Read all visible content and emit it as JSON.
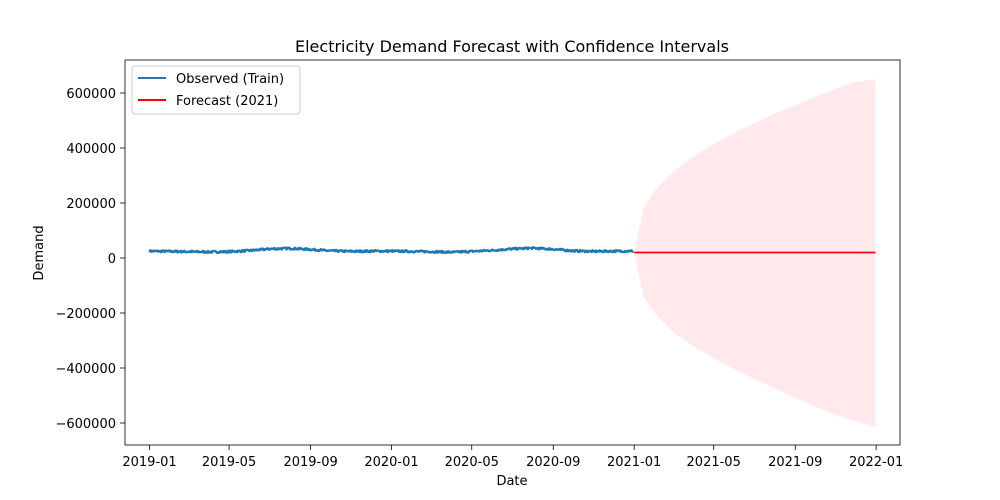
{
  "chart_data": {
    "type": "line",
    "title": "Electricity Demand Forecast with Confidence Intervals",
    "xlabel": "Date",
    "ylabel": "Demand",
    "x_axis": {
      "type": "date",
      "range": [
        "2018-11-25",
        "2022-02-06"
      ],
      "ticks": [
        "2019-01",
        "2019-05",
        "2019-09",
        "2020-01",
        "2020-05",
        "2020-09",
        "2021-01",
        "2021-05",
        "2021-09",
        "2022-01"
      ]
    },
    "y_axis": {
      "range": [
        -680000,
        720000
      ],
      "ticks": [
        -600000,
        -400000,
        -200000,
        0,
        200000,
        400000,
        600000
      ]
    },
    "grid": false,
    "legend_position": "top-left",
    "series": [
      {
        "name": "Observed (Train)",
        "color": "#1f77b4",
        "points": [
          [
            "2019-01-01",
            25000
          ],
          [
            "2019-02-01",
            24000
          ],
          [
            "2019-03-01",
            23000
          ],
          [
            "2019-04-01",
            22000
          ],
          [
            "2019-05-01",
            23000
          ],
          [
            "2019-06-01",
            27000
          ],
          [
            "2019-07-01",
            33000
          ],
          [
            "2019-08-01",
            35000
          ],
          [
            "2019-09-01",
            31000
          ],
          [
            "2019-10-01",
            26000
          ],
          [
            "2019-11-01",
            24000
          ],
          [
            "2019-12-01",
            25000
          ],
          [
            "2020-01-01",
            25000
          ],
          [
            "2020-02-01",
            24000
          ],
          [
            "2020-03-01",
            23000
          ],
          [
            "2020-04-01",
            21000
          ],
          [
            "2020-05-01",
            24000
          ],
          [
            "2020-06-01",
            28000
          ],
          [
            "2020-07-01",
            33000
          ],
          [
            "2020-08-01",
            36000
          ],
          [
            "2020-09-01",
            32000
          ],
          [
            "2020-10-01",
            26000
          ],
          [
            "2020-11-01",
            24000
          ],
          [
            "2020-12-01",
            25000
          ],
          [
            "2020-12-31",
            25000
          ]
        ]
      },
      {
        "name": "Forecast (2021)",
        "color": "#ff0000",
        "points": [
          [
            "2021-01-01",
            20000
          ],
          [
            "2021-12-31",
            20000
          ]
        ]
      }
    ],
    "confidence_interval": {
      "color": "#ffc0cb",
      "opacity": 0.35,
      "points": [
        [
          "2021-01-01",
          20000,
          20000
        ],
        [
          "2021-01-15",
          -140000,
          180000
        ],
        [
          "2021-02-01",
          -200000,
          245000
        ],
        [
          "2021-03-01",
          -270000,
          315000
        ],
        [
          "2021-04-01",
          -320000,
          370000
        ],
        [
          "2021-05-01",
          -365000,
          415000
        ],
        [
          "2021-06-01",
          -405000,
          455000
        ],
        [
          "2021-07-01",
          -440000,
          490000
        ],
        [
          "2021-08-01",
          -475000,
          525000
        ],
        [
          "2021-09-01",
          -510000,
          555000
        ],
        [
          "2021-10-01",
          -540000,
          585000
        ],
        [
          "2021-11-01",
          -570000,
          615000
        ],
        [
          "2021-12-01",
          -595000,
          640000
        ],
        [
          "2021-12-31",
          -615000,
          650000
        ]
      ]
    }
  }
}
